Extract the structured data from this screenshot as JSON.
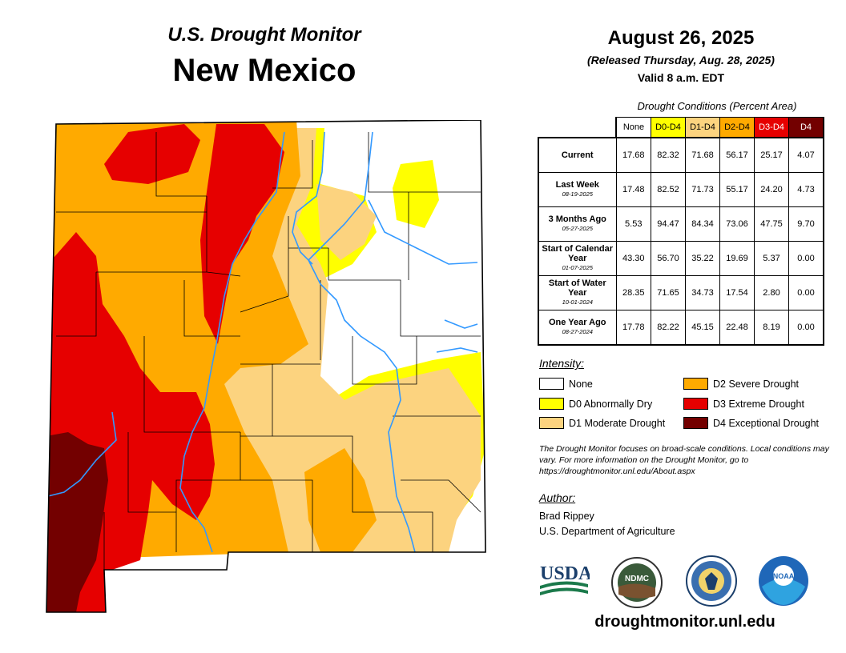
{
  "header": {
    "monitor_title": "U.S. Drought Monitor",
    "state": "New Mexico",
    "date": "August 26, 2025",
    "released": "(Released Thursday, Aug. 28, 2025)",
    "valid": "Valid 8 a.m. EDT"
  },
  "table": {
    "caption": "Drought Conditions (Percent Area)",
    "columns": [
      "None",
      "D0-D4",
      "D1-D4",
      "D2-D4",
      "D3-D4",
      "D4"
    ],
    "column_colors": [
      "#ffffff",
      "#ffff00",
      "#fcd37f",
      "#ffaa00",
      "#e60000",
      "#730000"
    ],
    "column_text_colors": [
      "#000000",
      "#000000",
      "#000000",
      "#000000",
      "#ffffff",
      "#ffffff"
    ],
    "rows": [
      {
        "label": "Current",
        "date": "",
        "values": [
          "17.68",
          "82.32",
          "71.68",
          "56.17",
          "25.17",
          "4.07"
        ]
      },
      {
        "label": "Last Week",
        "date": "08-19-2025",
        "values": [
          "17.48",
          "82.52",
          "71.73",
          "55.17",
          "24.20",
          "4.73"
        ]
      },
      {
        "label": "3 Months Ago",
        "date": "05-27-2025",
        "values": [
          "5.53",
          "94.47",
          "84.34",
          "73.06",
          "47.75",
          "9.70"
        ]
      },
      {
        "label": "Start of Calendar Year",
        "date": "01-07-2025",
        "values": [
          "43.30",
          "56.70",
          "35.22",
          "19.69",
          "5.37",
          "0.00"
        ]
      },
      {
        "label": "Start of Water Year",
        "date": "10-01-2024",
        "values": [
          "28.35",
          "71.65",
          "34.73",
          "17.54",
          "2.80",
          "0.00"
        ]
      },
      {
        "label": "One Year Ago",
        "date": "08-27-2024",
        "values": [
          "17.78",
          "82.22",
          "45.15",
          "22.48",
          "8.19",
          "0.00"
        ]
      }
    ]
  },
  "legend": {
    "title": "Intensity:",
    "items": [
      {
        "label": "None",
        "color": "#ffffff"
      },
      {
        "label": "D0 Abnormally Dry",
        "color": "#ffff00"
      },
      {
        "label": "D1 Moderate Drought",
        "color": "#fcd37f"
      },
      {
        "label": "D2 Severe Drought",
        "color": "#ffaa00"
      },
      {
        "label": "D3 Extreme Drought",
        "color": "#e60000"
      },
      {
        "label": "D4 Exceptional Drought",
        "color": "#730000"
      }
    ]
  },
  "note": "The Drought Monitor focuses on broad-scale conditions. Local conditions may vary. For more information on the Drought Monitor, go to https://droughtmonitor.unl.edu/About.aspx",
  "author": {
    "title": "Author:",
    "name": "Brad Rippey",
    "org": "U.S. Department of Agriculture"
  },
  "logos": {
    "usda": "USDA",
    "ndmc": "NDMC",
    "noaa": "NOAA",
    "doc_icon": "department-of-commerce-seal"
  },
  "footer_url": "droughtmonitor.unl.edu",
  "map_colors": {
    "none": "#ffffff",
    "d0": "#ffff00",
    "d1": "#fcd37f",
    "d2": "#ffaa00",
    "d3": "#e60000",
    "d4": "#730000",
    "river": "#3399ff",
    "border": "#000000"
  }
}
